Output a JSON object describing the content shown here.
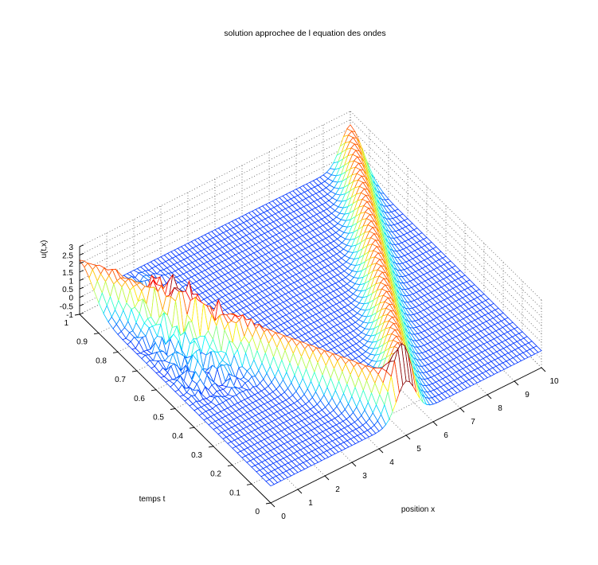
{
  "chart_data": {
    "type": "surface",
    "title": "solution approchee de l equation des ondes",
    "xlabel": "position x",
    "ylabel": "temps t",
    "zlabel": "u(t,x)",
    "xlim": [
      0,
      10
    ],
    "ylim": [
      0,
      1
    ],
    "zlim": [
      -1,
      3
    ],
    "x_ticks": [
      "0",
      "1",
      "2",
      "3",
      "4",
      "5",
      "6",
      "7",
      "8",
      "9",
      "10"
    ],
    "y_ticks": [
      "0",
      "0.1",
      "0.2",
      "0.3",
      "0.4",
      "0.5",
      "0.6",
      "0.7",
      "0.8",
      "0.9",
      "1"
    ],
    "z_ticks": [
      "-1",
      "-0.5",
      "0",
      "0.5",
      "1",
      "1.5",
      "2",
      "2.5",
      "3"
    ],
    "grid": true,
    "colormap": "jet",
    "surface": {
      "x_samples": 81,
      "t_samples": 41,
      "initial_pulse": {
        "center_x": 5,
        "peak": 2.2
      },
      "right_moving_wave": {
        "start_x": 5,
        "speed": 5,
        "peak": 2.2
      },
      "left_moving_wave": {
        "start_x": 5,
        "speed": 5,
        "peak": 2.2
      },
      "noise_region": {
        "x_range": [
          0,
          3
        ],
        "t_range": [
          0.35,
          1
        ],
        "amplitude": 0.9
      }
    }
  }
}
